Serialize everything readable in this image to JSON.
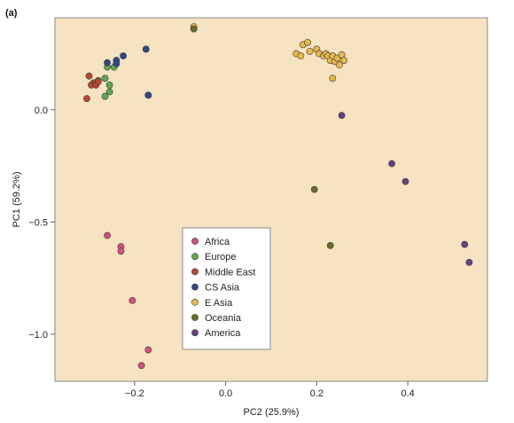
{
  "chart_data": {
    "type": "scatter",
    "panel_label": "(a)",
    "xlabel": "PC2 (25.9%)",
    "ylabel": "PC1 (59.2%)",
    "xlim": [
      -0.375,
      0.575
    ],
    "ylim": [
      -1.21,
      0.41
    ],
    "x_ticks": [
      -0.2,
      0.0,
      0.2,
      0.4
    ],
    "x_tick_labels": [
      "−0.2",
      "0.0",
      "0.2",
      "0.4"
    ],
    "y_ticks": [
      0.0,
      -0.5,
      -1.0
    ],
    "y_tick_labels": [
      "0.0",
      "−0.5",
      "−1.0"
    ],
    "grid": false,
    "legend_position": "center-bottom",
    "plot_background": "#f5e3c1",
    "series": [
      {
        "name": "Africa",
        "color": "#d4507e",
        "points": [
          [
            -0.26,
            -0.56
          ],
          [
            -0.23,
            -0.61
          ],
          [
            -0.23,
            -0.63
          ],
          [
            -0.205,
            -0.85
          ],
          [
            -0.17,
            -1.07
          ],
          [
            -0.185,
            -1.14
          ]
        ]
      },
      {
        "name": "Europe",
        "color": "#5fa850",
        "points": [
          [
            -0.245,
            0.19
          ],
          [
            -0.265,
            0.14
          ],
          [
            -0.255,
            0.11
          ],
          [
            -0.28,
            0.13
          ],
          [
            -0.255,
            0.08
          ],
          [
            -0.265,
            0.06
          ],
          [
            -0.26,
            0.19
          ]
        ]
      },
      {
        "name": "Middle East",
        "color": "#b5492f",
        "points": [
          [
            -0.3,
            0.15
          ],
          [
            -0.29,
            0.12
          ],
          [
            -0.295,
            0.11
          ],
          [
            -0.285,
            0.11
          ],
          [
            -0.28,
            0.125
          ],
          [
            -0.305,
            0.05
          ]
        ]
      },
      {
        "name": "CS Asia",
        "color": "#2f4a8a",
        "points": [
          [
            -0.26,
            0.21
          ],
          [
            -0.24,
            0.22
          ],
          [
            -0.24,
            0.205
          ],
          [
            -0.225,
            0.24
          ],
          [
            -0.175,
            0.27
          ],
          [
            -0.17,
            0.065
          ]
        ]
      },
      {
        "name": "E Asia",
        "color": "#e6b84a",
        "points": [
          [
            -0.07,
            0.37
          ],
          [
            0.155,
            0.25
          ],
          [
            0.165,
            0.24
          ],
          [
            0.17,
            0.29
          ],
          [
            0.18,
            0.3
          ],
          [
            0.185,
            0.26
          ],
          [
            0.2,
            0.27
          ],
          [
            0.205,
            0.25
          ],
          [
            0.215,
            0.24
          ],
          [
            0.22,
            0.25
          ],
          [
            0.225,
            0.24
          ],
          [
            0.23,
            0.22
          ],
          [
            0.235,
            0.24
          ],
          [
            0.24,
            0.215
          ],
          [
            0.245,
            0.23
          ],
          [
            0.25,
            0.2
          ],
          [
            0.255,
            0.245
          ],
          [
            0.26,
            0.22
          ],
          [
            0.235,
            0.14
          ]
        ]
      },
      {
        "name": "Oceania",
        "color": "#6b6b2e",
        "points": [
          [
            -0.07,
            0.36
          ],
          [
            0.195,
            -0.355
          ],
          [
            0.23,
            -0.605
          ]
        ]
      },
      {
        "name": "America",
        "color": "#6a3f82",
        "points": [
          [
            0.255,
            -0.025
          ],
          [
            0.365,
            -0.24
          ],
          [
            0.395,
            -0.32
          ],
          [
            0.525,
            -0.6
          ],
          [
            0.535,
            -0.68
          ]
        ]
      }
    ]
  }
}
